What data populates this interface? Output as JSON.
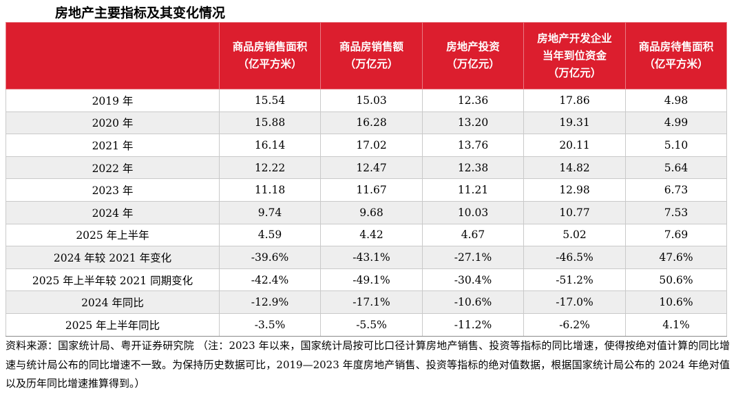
{
  "title": "房地产主要指标及其变化情况",
  "table": {
    "headers": [
      [
        "商品房销售面积",
        "（亿平方米）"
      ],
      [
        "商品房销售额",
        "（万亿元）"
      ],
      [
        "房地产投资",
        "（万亿元）"
      ],
      [
        "房地产开发企业",
        "当年到位资金",
        "（万亿元）"
      ],
      [
        "商品房待售面积",
        "（亿平方米）"
      ]
    ],
    "rows": [
      {
        "label": "2019 年",
        "values": [
          "15.54",
          "15.03",
          "12.36",
          "17.86",
          "4.98"
        ]
      },
      {
        "label": "2020 年",
        "values": [
          "15.88",
          "16.28",
          "13.20",
          "19.31",
          "4.99"
        ]
      },
      {
        "label": "2021 年",
        "values": [
          "16.14",
          "17.02",
          "13.76",
          "20.11",
          "5.10"
        ]
      },
      {
        "label": "2022 年",
        "values": [
          "12.22",
          "12.47",
          "12.38",
          "14.82",
          "5.64"
        ]
      },
      {
        "label": "2023 年",
        "values": [
          "11.18",
          "11.67",
          "11.21",
          "12.98",
          "6.73"
        ]
      },
      {
        "label": "2024 年",
        "values": [
          "9.74",
          "9.68",
          "10.03",
          "10.77",
          "7.53"
        ]
      },
      {
        "label": "2025 年上半年",
        "values": [
          "4.59",
          "4.42",
          "4.67",
          "5.02",
          "7.69"
        ]
      },
      {
        "label": "2024 年较 2021 年变化",
        "values": [
          "-39.6%",
          "-43.1%",
          "-27.1%",
          "-46.5%",
          "47.6%"
        ]
      },
      {
        "label": "2025 年上半年较 2021 同期变化",
        "values": [
          "-42.4%",
          "-49.1%",
          "-30.4%",
          "-51.2%",
          "50.6%"
        ]
      },
      {
        "label": "2024 年同比",
        "values": [
          "-12.9%",
          "-17.1%",
          "-10.6%",
          "-17.0%",
          "10.6%"
        ]
      },
      {
        "label": "2025 年上半年同比",
        "values": [
          "-3.5%",
          "-5.5%",
          "-11.2%",
          "-6.2%",
          "4.1%"
        ]
      }
    ]
  },
  "note": "资料来源：国家统计局、粤开证券研究院 （注：2023 年以来，国家统计局按可比口径计算房地产销售、投资等指标的同比增速，使得按绝对值计算的同比增速与统计局公布的同比增速不一致。为保持历史数据可比，2019—2023 年度房地产销售、投资等指标的绝对值数据，根据国家统计局公布的 2024 年绝对值以及历年同比增速推算得到。）",
  "colors": {
    "header_bg": "#dc1e2e",
    "header_text": "#ffffff",
    "stripe": "#eeeeee"
  }
}
